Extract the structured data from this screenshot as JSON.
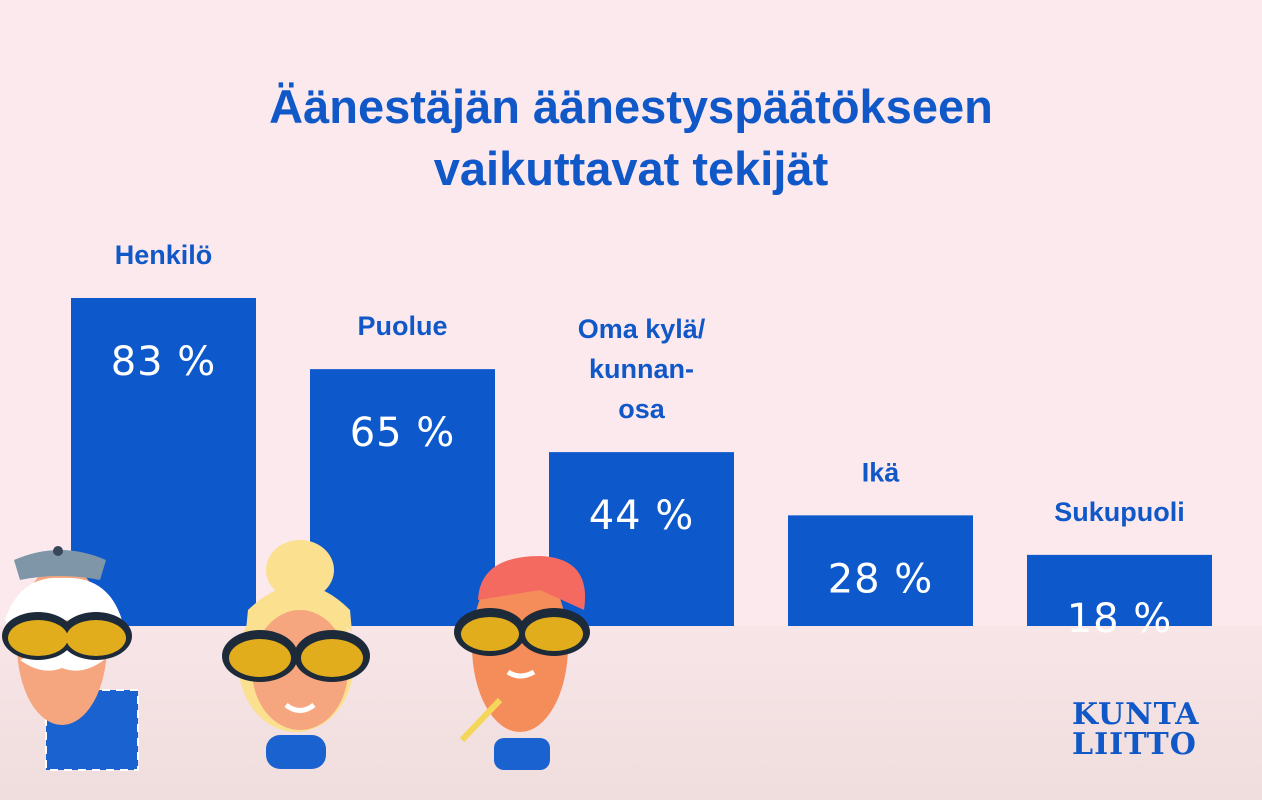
{
  "title_lines": [
    "Äänestäjän äänestyspäätökseen",
    "vaikuttavat tekijät"
  ],
  "chart_data": {
    "type": "bar",
    "title": "Äänestäjän äänestyspäätökseen vaikuttavat tekijät",
    "categories": [
      "Henkilö",
      "Puolue",
      "Oma kylä/ kunnan- osa",
      "Ikä",
      "Sukupuoli"
    ],
    "category_label_lines": [
      [
        "Henkilö"
      ],
      [
        "Puolue"
      ],
      [
        "Oma kylä/",
        "kunnan-",
        "osa"
      ],
      [
        "Ikä"
      ],
      [
        "Sukupuoli"
      ]
    ],
    "values": [
      83,
      65,
      44,
      28,
      18
    ],
    "value_labels": [
      "83 %",
      "65 %",
      "44 %",
      "28 %",
      "18 %"
    ],
    "unit": "%",
    "ylim": [
      0,
      83
    ],
    "grid": false,
    "legend": "none",
    "bar_color": "#0d59cc",
    "label_color": "#1057c8"
  },
  "logo": {
    "lines": [
      "KUNTA",
      "LIITTO"
    ],
    "color": "#1057c8"
  },
  "characters": [
    "old-man-icon",
    "blonde-woman-icon",
    "redhead-man-icon"
  ]
}
